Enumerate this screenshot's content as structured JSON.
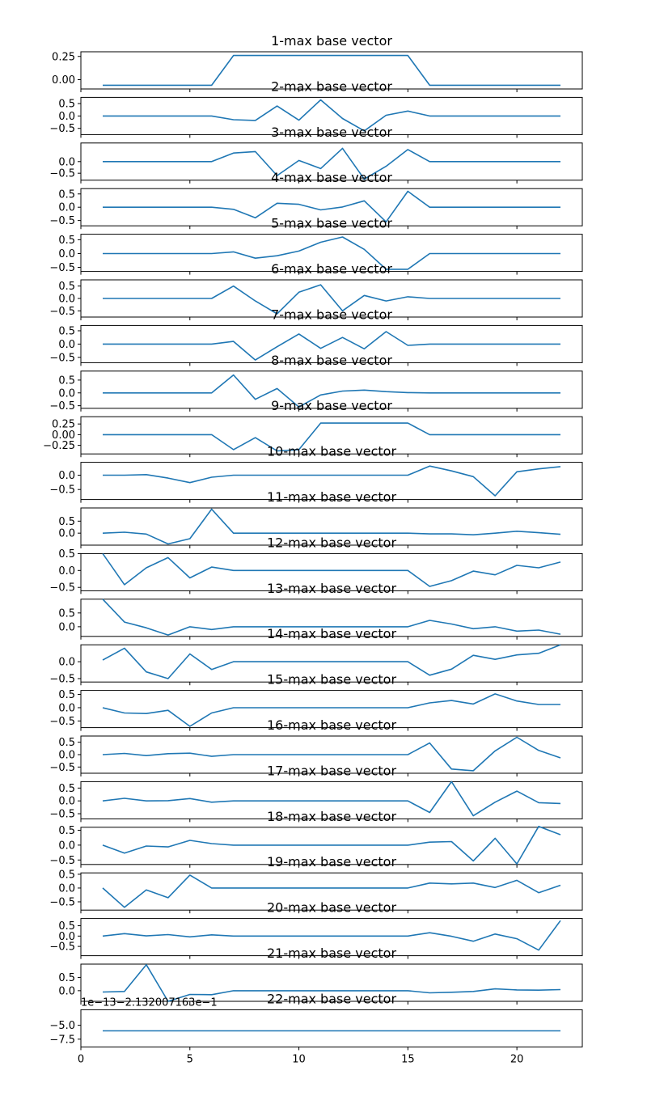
{
  "chart_data": {
    "type": "line",
    "color": "#1f77b4",
    "x": [
      1,
      2,
      3,
      4,
      5,
      6,
      7,
      8,
      9,
      10,
      11,
      12,
      13,
      14,
      15,
      16,
      17,
      18,
      19,
      20,
      21,
      22
    ],
    "xlim": [
      0,
      23
    ],
    "xticks": [
      0,
      5,
      10,
      15,
      20
    ],
    "xtick_labels": [
      "0",
      "5",
      "10",
      "15",
      "20"
    ],
    "panels": [
      {
        "title": "1-max base vector",
        "ylim": [
          -0.1,
          0.3
        ],
        "yticks": [
          0,
          0.25
        ],
        "ytick_labels": [
          "0.00",
          "0.25"
        ],
        "values": [
          -0.06,
          -0.06,
          -0.06,
          -0.06,
          -0.06,
          -0.06,
          0.26,
          0.26,
          0.26,
          0.26,
          0.26,
          0.26,
          0.26,
          0.26,
          0.26,
          -0.06,
          -0.06,
          -0.06,
          -0.06,
          -0.06,
          -0.06,
          -0.06
        ]
      },
      {
        "title": "2-max base vector",
        "ylim": [
          -0.75,
          0.75
        ],
        "yticks": [
          -0.5,
          0,
          0.5
        ],
        "ytick_labels": [
          "−0.5",
          "0.0",
          "0.5"
        ],
        "values": [
          0,
          0,
          0,
          0,
          0,
          0,
          -0.15,
          -0.18,
          0.4,
          -0.17,
          0.65,
          -0.1,
          -0.6,
          0.03,
          0.2,
          0,
          0,
          0,
          0,
          0,
          0,
          0
        ]
      },
      {
        "title": "3-max base vector",
        "ylim": [
          -0.8,
          0.8
        ],
        "yticks": [
          -0.5,
          0
        ],
        "ytick_labels": [
          "−0.5",
          "0.0"
        ],
        "values": [
          0,
          0,
          0,
          0,
          0,
          0,
          0.37,
          0.43,
          -0.6,
          0.05,
          -0.3,
          0.57,
          -0.75,
          -0.2,
          0.52,
          0,
          0,
          0,
          0,
          0,
          0,
          0
        ]
      },
      {
        "title": "4-max base vector",
        "ylim": [
          -0.7,
          0.7
        ],
        "yticks": [
          -0.5,
          0,
          0.5
        ],
        "ytick_labels": [
          "−0.5",
          "0.0",
          "0.5"
        ],
        "values": [
          0,
          0,
          0,
          0,
          0,
          0,
          -0.08,
          -0.4,
          0.15,
          0.11,
          -0.1,
          0.01,
          0.24,
          -0.55,
          0.6,
          0,
          0,
          0,
          0,
          0,
          0,
          0
        ]
      },
      {
        "title": "5-max base vector",
        "ylim": [
          -0.65,
          0.7
        ],
        "yticks": [
          -0.5,
          0,
          0.5
        ],
        "ytick_labels": [
          "−0.5",
          "0.0",
          "0.5"
        ],
        "values": [
          0,
          0,
          0,
          0,
          0,
          0,
          0.06,
          -0.17,
          -0.08,
          0.09,
          0.41,
          0.6,
          0.15,
          -0.57,
          -0.57,
          0,
          0,
          0,
          0,
          0,
          0,
          0
        ]
      },
      {
        "title": "6-max base vector",
        "ylim": [
          -0.75,
          0.75
        ],
        "yticks": [
          -0.5,
          0,
          0.5
        ],
        "ytick_labels": [
          "−0.5",
          "0.0",
          "0.5"
        ],
        "values": [
          0,
          0,
          0,
          0,
          0,
          0,
          0.5,
          -0.1,
          -0.62,
          0.25,
          0.55,
          -0.5,
          0.12,
          -0.1,
          0.07,
          0,
          0,
          0,
          0,
          0,
          0,
          0
        ]
      },
      {
        "title": "7-max base vector",
        "ylim": [
          -0.7,
          0.7
        ],
        "yticks": [
          -0.5,
          0,
          0.5
        ],
        "ytick_labels": [
          "−0.5",
          "0.0",
          "0.5"
        ],
        "values": [
          0,
          0,
          0,
          0,
          0,
          0,
          0.1,
          -0.6,
          -0.1,
          0.38,
          -0.16,
          0.25,
          -0.18,
          0.47,
          -0.05,
          0,
          0,
          0,
          0,
          0,
          0,
          0
        ]
      },
      {
        "title": "8-max base vector",
        "ylim": [
          -0.6,
          0.85
        ],
        "yticks": [
          -0.5,
          0,
          0.5
        ],
        "ytick_labels": [
          "−0.5",
          "0.0",
          "0.5"
        ],
        "values": [
          0,
          0,
          0,
          0,
          0,
          0,
          0.7,
          -0.25,
          0.17,
          -0.55,
          -0.08,
          0.07,
          0.11,
          0.05,
          0.01,
          0,
          0,
          0,
          0,
          0,
          0,
          0
        ]
      },
      {
        "title": "9-max base vector",
        "ylim": [
          -0.45,
          0.42
        ],
        "yticks": [
          -0.25,
          0,
          0.25
        ],
        "ytick_labels": [
          "−0.25",
          "0.00",
          "0.25"
        ],
        "values": [
          0,
          0,
          0,
          0,
          0,
          0,
          -0.35,
          -0.07,
          -0.38,
          -0.35,
          0.27,
          0.27,
          0.27,
          0.27,
          0.27,
          0,
          0,
          0,
          0,
          0,
          0,
          0
        ]
      },
      {
        "title": "10-max base vector",
        "ylim": [
          -0.85,
          0.45
        ],
        "yticks": [
          -0.5,
          0
        ],
        "ytick_labels": [
          "−0.5",
          "0.0"
        ],
        "values": [
          0,
          0,
          0.02,
          -0.1,
          -0.26,
          -0.07,
          0,
          0,
          0,
          0,
          0,
          0,
          0,
          0,
          0,
          0.32,
          0.15,
          -0.05,
          -0.72,
          0.12,
          0.22,
          0.3
        ]
      },
      {
        "title": "11-max base vector",
        "ylim": [
          -0.5,
          1.05
        ],
        "yticks": [
          0,
          0.5
        ],
        "ytick_labels": [
          "0.0",
          "0.5"
        ],
        "values": [
          0,
          0.04,
          -0.04,
          -0.45,
          -0.23,
          1.0,
          0,
          0,
          0,
          0,
          0,
          0,
          0,
          0,
          0,
          -0.03,
          -0.03,
          -0.07,
          0,
          0.08,
          0.02,
          -0.05
        ]
      },
      {
        "title": "12-max base vector",
        "ylim": [
          -0.6,
          0.5
        ],
        "yticks": [
          -0.5,
          0,
          0.5
        ],
        "ytick_labels": [
          "−0.5",
          "0.0",
          "0.5"
        ],
        "values": [
          0.5,
          -0.42,
          0.08,
          0.38,
          -0.22,
          0.1,
          0,
          0,
          0,
          0,
          0,
          0,
          0,
          0,
          0,
          -0.47,
          -0.3,
          -0.02,
          -0.13,
          0.15,
          0.08,
          0.25
        ]
      },
      {
        "title": "13-max base vector",
        "ylim": [
          -0.35,
          1.0
        ],
        "yticks": [
          0,
          0.5
        ],
        "ytick_labels": [
          "0.0",
          "0.5"
        ],
        "values": [
          1.0,
          0.17,
          -0.04,
          -0.3,
          0,
          -0.1,
          0,
          0,
          0,
          0,
          0,
          0,
          0,
          0,
          0,
          0.23,
          0.1,
          -0.07,
          0,
          -0.16,
          -0.12,
          -0.27
        ]
      },
      {
        "title": "14-max base vector",
        "ylim": [
          -0.6,
          0.5
        ],
        "yticks": [
          -0.5,
          0
        ],
        "ytick_labels": [
          "−0.5",
          "0.0"
        ],
        "values": [
          0.05,
          0.4,
          -0.3,
          -0.5,
          0.23,
          -0.23,
          0,
          0,
          0,
          0,
          0,
          0,
          0,
          0,
          0,
          -0.4,
          -0.22,
          0.19,
          0.07,
          0.2,
          0.25,
          0.5
        ]
      },
      {
        "title": "15-max base vector",
        "ylim": [
          -0.75,
          0.65
        ],
        "yticks": [
          -0.5,
          0,
          0.5
        ],
        "ytick_labels": [
          "−0.5",
          "0.0",
          "0.5"
        ],
        "values": [
          0,
          -0.2,
          -0.22,
          -0.1,
          -0.7,
          -0.2,
          0,
          0,
          0,
          0,
          0,
          0,
          0,
          0,
          0,
          0.18,
          0.27,
          0.14,
          0.52,
          0.25,
          0.12,
          0.12
        ]
      },
      {
        "title": "16-max base vector",
        "ylim": [
          -0.75,
          0.75
        ],
        "yticks": [
          -0.5,
          0,
          0.5
        ],
        "ytick_labels": [
          "−0.5",
          "0.0",
          "0.5"
        ],
        "values": [
          0,
          0.05,
          -0.04,
          0.04,
          0.06,
          -0.07,
          0,
          0,
          0,
          0,
          0,
          0,
          0,
          0,
          0,
          0.47,
          -0.58,
          -0.65,
          0.15,
          0.7,
          0.17,
          -0.13
        ]
      },
      {
        "title": "17-max base vector",
        "ylim": [
          -0.7,
          0.75
        ],
        "yticks": [
          -0.5,
          0,
          0.5
        ],
        "ytick_labels": [
          "−0.5",
          "0.0",
          "0.5"
        ],
        "values": [
          0,
          0.1,
          0,
          0.01,
          0.09,
          -0.05,
          0,
          0,
          0,
          0,
          0,
          0,
          0,
          0,
          0,
          -0.45,
          0.75,
          -0.58,
          -0.05,
          0.38,
          -0.07,
          -0.1
        ]
      },
      {
        "title": "18-max base vector",
        "ylim": [
          -0.65,
          0.6
        ],
        "yticks": [
          -0.5,
          0,
          0.5
        ],
        "ytick_labels": [
          "−0.5",
          "0.0",
          "0.5"
        ],
        "values": [
          0,
          -0.27,
          -0.03,
          -0.06,
          0.16,
          0.05,
          0,
          0,
          0,
          0,
          0,
          0,
          0,
          0,
          0,
          0.1,
          0.12,
          -0.53,
          0.23,
          -0.63,
          0.63,
          0.35
        ]
      },
      {
        "title": "19-max base vector",
        "ylim": [
          -0.8,
          0.55
        ],
        "yticks": [
          -0.5,
          0,
          0.5
        ],
        "ytick_labels": [
          "−0.5",
          "0.0",
          "0.5"
        ],
        "values": [
          0,
          -0.7,
          -0.07,
          -0.35,
          0.47,
          0,
          0,
          0,
          0,
          0,
          0,
          0,
          0,
          0,
          0,
          0.18,
          0.15,
          0.18,
          0.02,
          0.28,
          -0.17,
          0.1
        ]
      },
      {
        "title": "20-max base vector",
        "ylim": [
          -0.95,
          0.85
        ],
        "yticks": [
          -0.5,
          0,
          0.5
        ],
        "ytick_labels": [
          "−0.5",
          "0.0",
          "0.5"
        ],
        "values": [
          0,
          0.12,
          0.01,
          0.07,
          -0.04,
          0.06,
          0,
          0,
          0,
          0,
          0,
          0,
          0,
          0,
          0,
          0.16,
          -0.01,
          -0.25,
          0.1,
          -0.13,
          -0.68,
          0.75
        ]
      },
      {
        "title": "21-max base vector",
        "ylim": [
          -0.4,
          1.0
        ],
        "yticks": [
          0,
          0.5
        ],
        "ytick_labels": [
          "0.0",
          "0.5"
        ],
        "values": [
          -0.05,
          -0.03,
          0.98,
          -0.4,
          -0.14,
          -0.15,
          0,
          0,
          0,
          0,
          0,
          0,
          0,
          0,
          0,
          -0.08,
          -0.06,
          -0.03,
          0.07,
          0.03,
          0.02,
          0.04
        ]
      },
      {
        "title": "22-max base vector",
        "ylim": [
          -8.9,
          -2.2
        ],
        "yticks": [
          -7.5,
          -5.0
        ],
        "ytick_labels": [
          "−7.5",
          "−5.0"
        ],
        "offset_text": "1e−13−2.132007163e−1",
        "values": [
          -6.0,
          -6.0,
          -6.0,
          -6.0,
          -6.0,
          -6.0,
          -6.0,
          -6.0,
          -6.0,
          -6.0,
          -6.0,
          -6.0,
          -6.0,
          -6.0,
          -6.0,
          -6.0,
          -6.0,
          -6.0,
          -6.0,
          -6.0,
          -6.0,
          -6.0
        ]
      }
    ]
  }
}
